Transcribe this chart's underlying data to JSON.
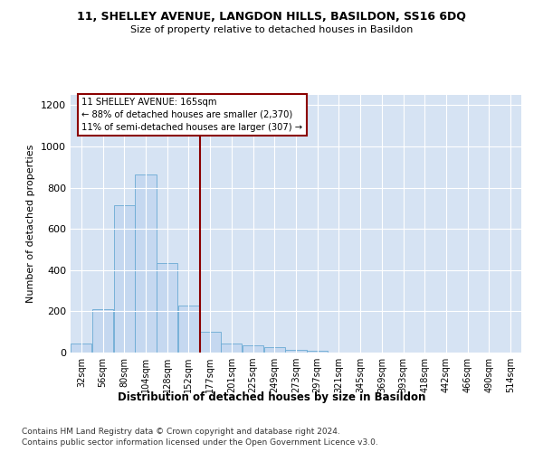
{
  "title1": "11, SHELLEY AVENUE, LANGDON HILLS, BASILDON, SS16 6DQ",
  "title2": "Size of property relative to detached houses in Basildon",
  "xlabel": "Distribution of detached houses by size in Basildon",
  "ylabel": "Number of detached properties",
  "footnote1": "Contains HM Land Registry data © Crown copyright and database right 2024.",
  "footnote2": "Contains public sector information licensed under the Open Government Licence v3.0.",
  "property_label": "11 SHELLEY AVENUE: 165sqm",
  "annotation_line1": "← 88% of detached houses are smaller (2,370)",
  "annotation_line2": "11% of semi-detached houses are larger (307) →",
  "bar_color": "#c5d8f0",
  "bar_edge_color": "#6aaad4",
  "vline_color": "#8b0000",
  "annotation_box_edgecolor": "#8b0000",
  "background_color": "#ffffff",
  "grid_color": "#d6e3f3",
  "categories": [
    "32sqm",
    "56sqm",
    "80sqm",
    "104sqm",
    "128sqm",
    "152sqm",
    "177sqm",
    "201sqm",
    "225sqm",
    "249sqm",
    "273sqm",
    "297sqm",
    "321sqm",
    "345sqm",
    "369sqm",
    "393sqm",
    "418sqm",
    "442sqm",
    "466sqm",
    "490sqm",
    "514sqm"
  ],
  "bin_edges": [
    20,
    44,
    68,
    92,
    116,
    140,
    164,
    188,
    212,
    236,
    260,
    284,
    308,
    332,
    356,
    380,
    404,
    428,
    452,
    476,
    500,
    524
  ],
  "values": [
    45,
    210,
    715,
    865,
    435,
    230,
    100,
    45,
    35,
    25,
    15,
    10,
    0,
    0,
    0,
    0,
    0,
    0,
    0,
    0,
    0
  ],
  "ylim": [
    0,
    1250
  ],
  "yticks": [
    0,
    200,
    400,
    600,
    800,
    1000,
    1200
  ],
  "vline_x": 165
}
